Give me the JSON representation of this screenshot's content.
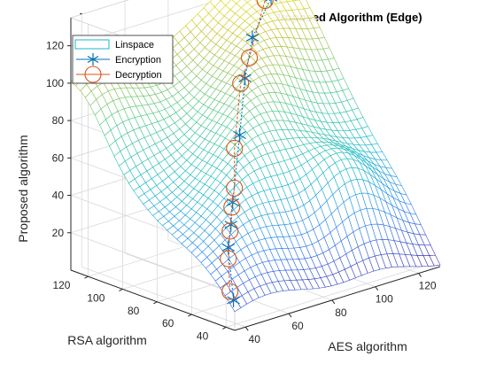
{
  "chart_data": {
    "type": "surface3d",
    "title": "Not Hacked through AES, RSA and Proposed Algorithm (Edge)",
    "xlabel": "AES algorithm",
    "ylabel": "RSA algorithm",
    "zlabel": "Proposed algorithm",
    "xlim": [
      35,
      130
    ],
    "ylim": [
      35,
      130
    ],
    "zlim": [
      0,
      135
    ],
    "xticks": [
      "40",
      "60",
      "80",
      "100",
      "120"
    ],
    "yticks": [
      "40",
      "60",
      "80",
      "100",
      "120"
    ],
    "zticks": [
      "20",
      "40",
      "60",
      "80",
      "100",
      "120"
    ],
    "grid": true,
    "legend_position": "top-left",
    "colormap": [
      "#3e26a8",
      "#2f7df5",
      "#17b8c9",
      "#4cc88a",
      "#c2c02a",
      "#f9fb15"
    ],
    "surface_corners": [
      {
        "x": 35,
        "y": 35,
        "z": 10
      },
      {
        "x": 130,
        "y": 35,
        "z": 0
      },
      {
        "x": 35,
        "y": 130,
        "z": 78
      },
      {
        "x": 130,
        "y": 130,
        "z": 135
      }
    ],
    "series": [
      {
        "name": "Linspace",
        "type": "surface",
        "color": "#17b8c9"
      },
      {
        "name": "Encryption",
        "type": "line-marker",
        "marker": "asterisk",
        "color": "#0072bd",
        "points": [
          {
            "x": 40,
            "y": 42,
            "z": 12
          },
          {
            "x": 44,
            "y": 50,
            "z": 36
          },
          {
            "x": 50,
            "y": 56,
            "z": 44
          },
          {
            "x": 58,
            "y": 65,
            "z": 50
          },
          {
            "x": 70,
            "y": 76,
            "z": 78
          },
          {
            "x": 82,
            "y": 88,
            "z": 100
          },
          {
            "x": 95,
            "y": 100,
            "z": 113
          },
          {
            "x": 118,
            "y": 118,
            "z": 120
          }
        ]
      },
      {
        "name": "Decryption",
        "type": "line-marker",
        "marker": "circle",
        "color": "#d95319",
        "points": [
          {
            "x": 40,
            "y": 44,
            "z": 16
          },
          {
            "x": 44,
            "y": 50,
            "z": 30
          },
          {
            "x": 48,
            "y": 54,
            "z": 42
          },
          {
            "x": 52,
            "y": 58,
            "z": 52
          },
          {
            "x": 58,
            "y": 64,
            "z": 58
          },
          {
            "x": 66,
            "y": 74,
            "z": 73
          },
          {
            "x": 80,
            "y": 88,
            "z": 98
          },
          {
            "x": 92,
            "y": 98,
            "z": 104
          },
          {
            "x": 112,
            "y": 114,
            "z": 122
          },
          {
            "x": 118,
            "y": 120,
            "z": 130
          }
        ]
      }
    ]
  }
}
